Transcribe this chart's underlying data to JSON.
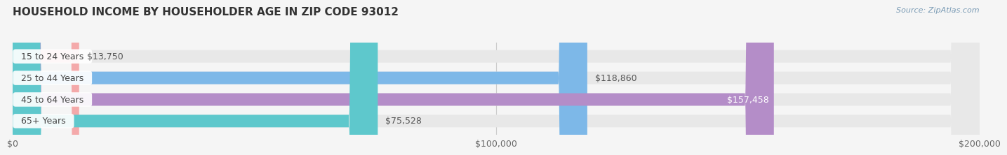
{
  "title": "HOUSEHOLD INCOME BY HOUSEHOLDER AGE IN ZIP CODE 93012",
  "source": "Source: ZipAtlas.com",
  "categories": [
    "15 to 24 Years",
    "25 to 44 Years",
    "45 to 64 Years",
    "65+ Years"
  ],
  "values": [
    13750,
    118860,
    157458,
    75528
  ],
  "bar_colors": [
    "#f4a9aa",
    "#7db8e8",
    "#b48dc8",
    "#5ec8cc"
  ],
  "background_color": "#f5f5f5",
  "bar_bg_color": "#e8e8e8",
  "xlim": [
    0,
    200000
  ],
  "xticks": [
    0,
    100000,
    200000
  ],
  "xtick_labels": [
    "$0",
    "$100,000",
    "$200,000"
  ],
  "value_labels": [
    "$13,750",
    "$118,860",
    "$157,458",
    "$75,528"
  ],
  "value_inside": [
    false,
    false,
    true,
    false
  ],
  "title_fontsize": 11,
  "tick_fontsize": 9,
  "label_fontsize": 9,
  "bar_height": 0.58,
  "fig_width": 14.06,
  "fig_height": 2.33
}
